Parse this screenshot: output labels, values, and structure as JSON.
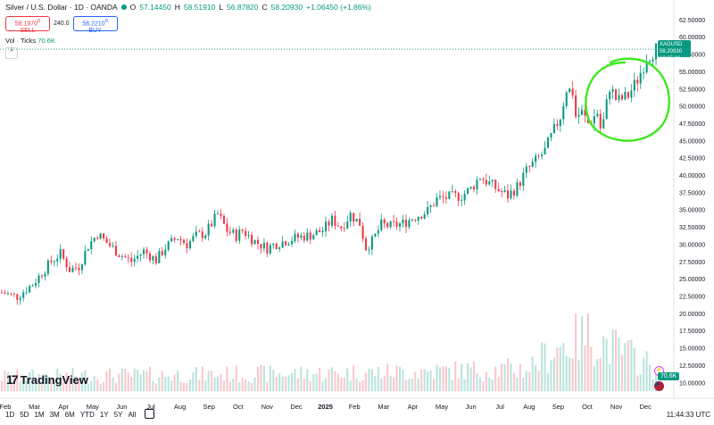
{
  "header": {
    "symbol": "Silver / U.S. Dollar · 1D · OANDA",
    "o_label": "O",
    "o_value": "57.14450",
    "h_label": "H",
    "h_value": "58.51910",
    "l_label": "L",
    "l_value": "56.87820",
    "c_label": "C",
    "c_value": "58.20930",
    "change": "+1.06450 (+1.86%)"
  },
  "trade": {
    "sell_price": "58.1970",
    "sell_sup": "0",
    "sell_label": "SELL",
    "spread": "240.0",
    "buy_price": "58.2210",
    "buy_sup": "0",
    "buy_label": "BUY"
  },
  "volume_pane": {
    "label": "Vol · Ticks",
    "value": "70.6K",
    "badge": "70.6K"
  },
  "collapse_label": "^",
  "price_tag": {
    "ticker": "XAGUSD",
    "price": "58.20930",
    "countdown": "10:15:26"
  },
  "bottom_bar": {
    "ranges": [
      "1D",
      "5D",
      "1M",
      "3M",
      "6M",
      "YTD",
      "1Y",
      "5Y",
      "All"
    ],
    "clock": "11:44:33 UTC"
  },
  "logo_text": "TradingView",
  "logo_mark": "17",
  "colors": {
    "up": "#089981",
    "down": "#f23645",
    "annotation": "#3fe81f"
  },
  "chart_data": {
    "type": "candlestick",
    "title": "Silver / U.S. Dollar · 1D · OANDA",
    "y_ticks": [
      "62.50000",
      "60.00000",
      "57.50000",
      "55.00000",
      "52.50000",
      "50.00000",
      "47.50000",
      "45.00000",
      "42.50000",
      "40.00000",
      "37.50000",
      "35.00000",
      "32.50000",
      "30.00000",
      "27.50000",
      "25.00000",
      "22.50000",
      "20.00000",
      "17.50000",
      "15.00000",
      "12.50000",
      "10.00000"
    ],
    "x_ticks": [
      "Feb",
      "Mar",
      "Apr",
      "May",
      "Jun",
      "Jul",
      "Aug",
      "Sep",
      "Oct",
      "Nov",
      "Dec",
      "2025",
      "Feb",
      "Mar",
      "Apr",
      "May",
      "Jun",
      "Jul",
      "Aug",
      "Sep",
      "Oct",
      "Nov",
      "Dec"
    ],
    "ylim": [
      9,
      63
    ],
    "last_price": 58.2093,
    "price_path": [
      [
        0,
        23.0
      ],
      [
        5,
        22.4
      ],
      [
        10,
        24.2
      ],
      [
        16,
        27.5
      ],
      [
        19,
        28.6
      ],
      [
        22,
        26.3
      ],
      [
        25,
        26.8
      ],
      [
        28,
        29.8
      ],
      [
        31,
        31.5
      ],
      [
        34,
        30.2
      ],
      [
        38,
        28.6
      ],
      [
        42,
        27.5
      ],
      [
        46,
        29.0
      ],
      [
        50,
        27.7
      ],
      [
        53,
        29.5
      ],
      [
        57,
        31.0
      ],
      [
        60,
        30.0
      ],
      [
        63,
        31.2
      ],
      [
        66,
        31.6
      ],
      [
        70,
        34.3
      ],
      [
        73,
        32.0
      ],
      [
        76,
        31.2
      ],
      [
        78,
        32.0
      ],
      [
        82,
        30.4
      ],
      [
        86,
        29.4
      ],
      [
        88,
        29.9
      ],
      [
        92,
        30.5
      ],
      [
        96,
        31.0
      ],
      [
        100,
        31.3
      ],
      [
        104,
        32.0
      ],
      [
        107,
        33.5
      ],
      [
        110,
        32.5
      ],
      [
        113,
        34.3
      ],
      [
        116,
        33.0
      ],
      [
        118,
        29.5
      ],
      [
        120,
        30.4
      ],
      [
        123,
        32.8
      ],
      [
        126,
        32.6
      ],
      [
        130,
        33.0
      ],
      [
        134,
        34.0
      ],
      [
        138,
        34.8
      ],
      [
        141,
        36.5
      ],
      [
        145,
        36.8
      ],
      [
        149,
        37.0
      ],
      [
        152,
        38.0
      ],
      [
        155,
        39.8
      ],
      [
        158,
        38.8
      ],
      [
        161,
        37.8
      ],
      [
        164,
        37.0
      ],
      [
        167,
        38.3
      ],
      [
        170,
        40.6
      ],
      [
        173,
        42.0
      ],
      [
        176,
        43.5
      ],
      [
        179,
        46.5
      ],
      [
        181,
        48.5
      ],
      [
        183,
        52.5
      ],
      [
        185,
        52.0
      ],
      [
        186,
        48.5
      ],
      [
        188,
        49.0
      ],
      [
        190,
        47.5
      ],
      [
        193,
        49.0
      ],
      [
        194,
        46.8
      ],
      [
        195,
        47.8
      ],
      [
        197,
        52.8
      ],
      [
        199,
        51.0
      ],
      [
        200,
        50.8
      ],
      [
        203,
        51.5
      ],
      [
        206,
        53.8
      ],
      [
        209,
        57.0
      ],
      [
        212,
        58.2
      ]
    ],
    "volume_trend": [
      [
        0,
        12.5
      ],
      [
        60,
        12.8
      ],
      [
        120,
        13.2
      ],
      [
        170,
        13.8
      ],
      [
        180,
        17.5
      ],
      [
        190,
        19.5
      ],
      [
        200,
        17.0
      ],
      [
        212,
        14.0
      ]
    ],
    "annotation": {
      "type": "hand-drawn circle",
      "around": "Oct–Nov peak"
    }
  }
}
